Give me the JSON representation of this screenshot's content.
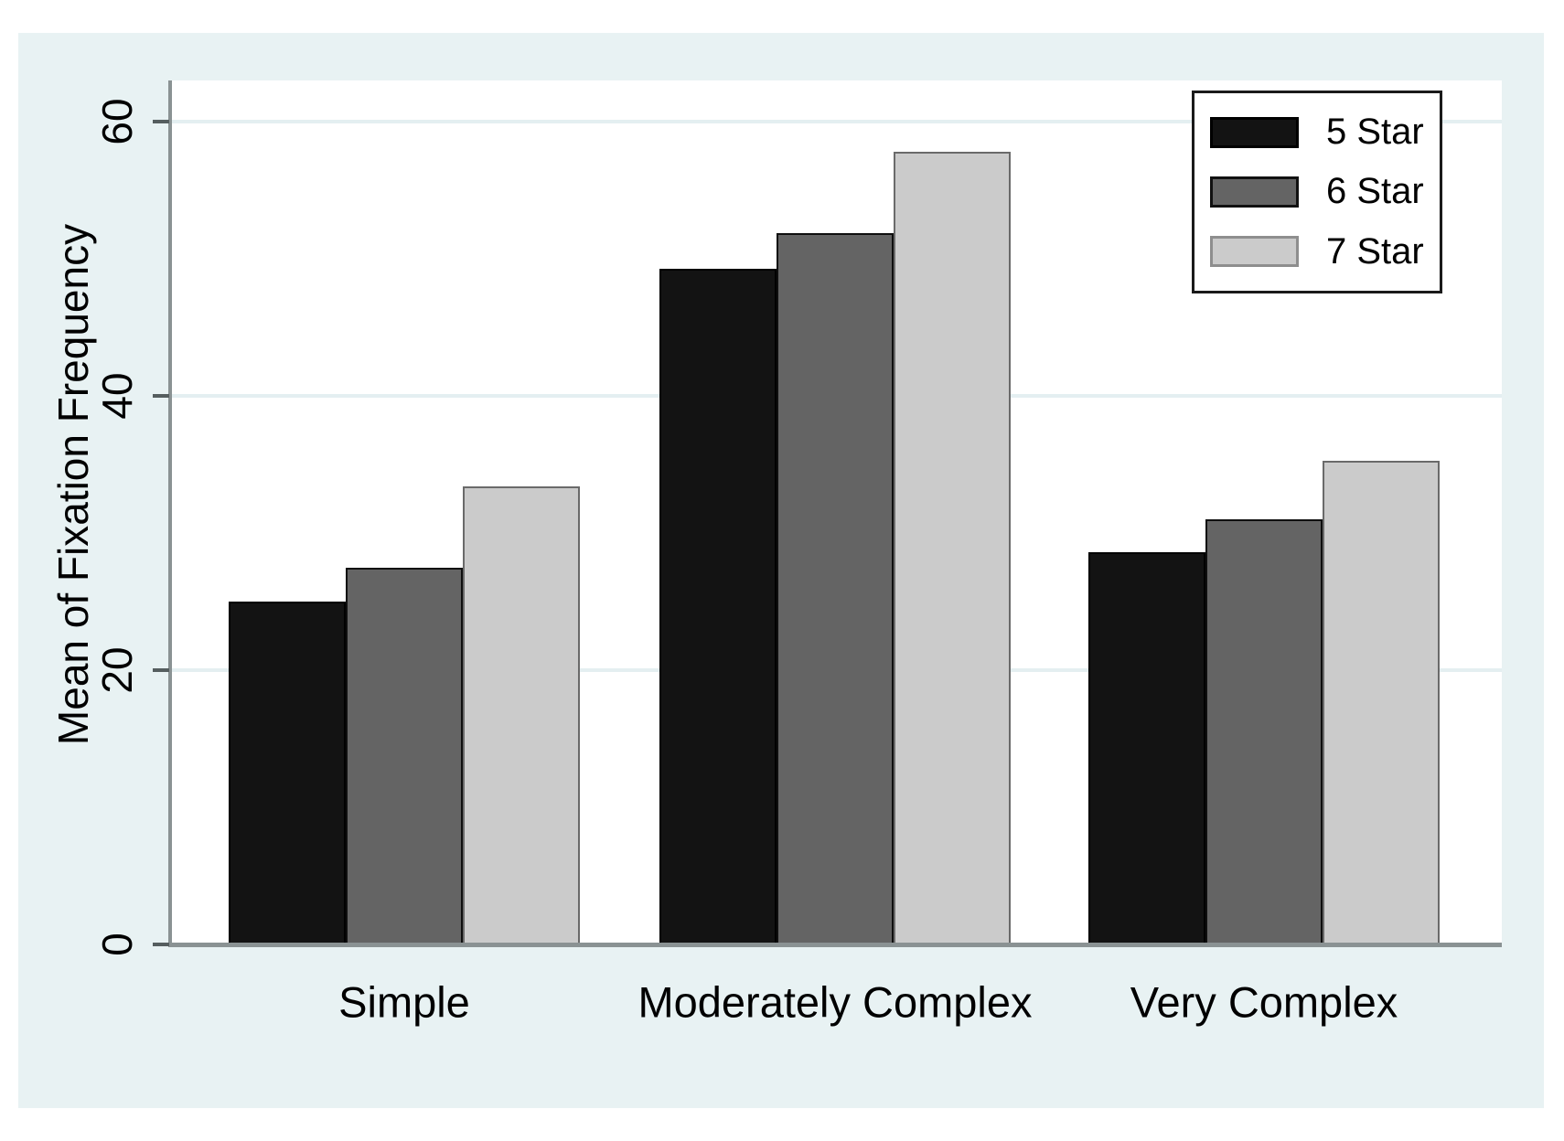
{
  "figure": {
    "background": "#ffffff",
    "panel_background": "#e8f2f3",
    "gridline_color": "#e4eff1",
    "axis_color": "#8a9293",
    "tick_color": "#555e5f",
    "text_color": "#000000"
  },
  "chart_data": {
    "type": "bar",
    "title": "",
    "xlabel": "",
    "ylabel": "Mean of Fixation Frequency",
    "categories": [
      "Simple",
      "Moderately Complex",
      "Very Complex"
    ],
    "series": [
      {
        "name": "5 Star",
        "color": "#131313",
        "border": "#000000",
        "legend_border": "#000000",
        "values": [
          25.0,
          49.3,
          28.6
        ]
      },
      {
        "name": "6 Star",
        "color": "#646464",
        "border": "#0f0f0f",
        "legend_border": "#111111",
        "values": [
          27.5,
          51.9,
          31.0
        ]
      },
      {
        "name": "7 Star",
        "color": "#cbcbcb",
        "border": "#6a6a6a",
        "legend_border": "#8e8e8e",
        "values": [
          33.4,
          57.8,
          35.3
        ]
      }
    ],
    "ylim": [
      0,
      63
    ],
    "yticks": [
      0,
      20,
      40,
      60
    ],
    "grid": true,
    "legend_position": "top-right"
  }
}
